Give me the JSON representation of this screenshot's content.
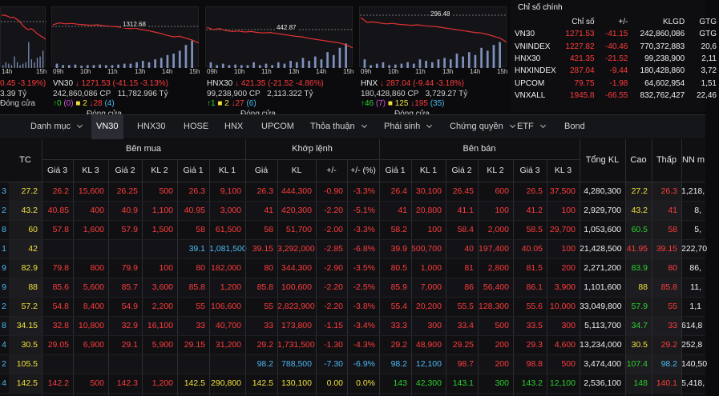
{
  "colors": {
    "up": "#2bd12b",
    "down": "#ff3b3b",
    "ceiling": "#d152d9",
    "floor": "#4ab8f0",
    "ref": "#f0e03a",
    "line": "#e23232",
    "volume": "#8fa7d9"
  },
  "cards": [
    {
      "id": "card0",
      "ref_label": "",
      "times": [
        "14h",
        "15h"
      ],
      "line": [
        0.1,
        0.1,
        0.12,
        0.15,
        0.14,
        0.18,
        0.22,
        0.3,
        0.36,
        0.4,
        0.38,
        0.42,
        0.48,
        0.52,
        0.56,
        0.6
      ],
      "vols": [
        0.1,
        0.2,
        0.15,
        0.1,
        0.4,
        0.2,
        0.1,
        0.15,
        0.2,
        0.9,
        0.3,
        0.2,
        0.35,
        0.4,
        0.6
      ],
      "l1": {
        "name": "",
        "arrow": "",
        "price": "",
        "change": "0.45 -3.19%)"
      },
      "l2": {
        "vol": "3.39",
        "value": "Tỷ"
      },
      "l3": {
        "up": "",
        "ceil": "",
        "ref": "",
        "down": "",
        "floor": ""
      },
      "status": "Đóng cửa"
    },
    {
      "id": "vn30",
      "ref_label": "1312.68",
      "times": [
        "09h",
        "10h",
        "11h",
        "13h",
        "14h",
        "15h"
      ],
      "line": [
        0.3,
        0.26,
        0.28,
        0.27,
        0.29,
        0.3,
        0.31,
        0.3,
        0.32,
        0.33,
        0.34,
        0.36,
        0.38,
        0.37,
        0.4,
        0.42,
        0.45,
        0.48,
        0.52,
        0.55,
        0.54,
        0.58,
        0.62,
        0.68
      ],
      "vols": [
        0.15,
        0.1,
        0.1,
        0.12,
        0.08,
        0.1,
        0.1,
        0.12,
        0.1,
        0.1,
        0.12,
        0.15,
        0.15,
        0.2,
        0.25,
        0.2,
        0.3,
        0.35,
        0.45,
        0.5,
        0.6,
        0.8,
        0.95
      ],
      "l1": {
        "name": "VN30",
        "arrow": "↓",
        "price": "1271.53",
        "change": "(-41.15 -3.13%)"
      },
      "l2": {
        "vol": "242,860,086 CP",
        "value": "11,782.996 Tỷ"
      },
      "l3": {
        "up": "0",
        "ceil": "(0)",
        "ref": "2",
        "down": "28",
        "floor": "(4)"
      },
      "status": "Đóng cửa"
    },
    {
      "id": "hnx30",
      "ref_label": "442.87",
      "times": [
        "09h",
        "10h",
        "11h",
        "13h",
        "14h",
        "15h"
      ],
      "line": [
        0.35,
        0.4,
        0.38,
        0.42,
        0.44,
        0.43,
        0.45,
        0.44,
        0.46,
        0.47,
        0.46,
        0.48,
        0.5,
        0.52,
        0.54,
        0.55,
        0.58,
        0.6,
        0.62,
        0.64,
        0.66,
        0.68,
        0.72,
        0.78
      ],
      "vols": [
        0.2,
        0.1,
        0.15,
        0.1,
        0.12,
        0.1,
        0.1,
        0.2,
        0.1,
        0.15,
        0.1,
        0.2,
        0.15,
        0.25,
        0.2,
        0.35,
        0.25,
        0.4,
        0.3,
        0.55,
        0.45,
        0.7,
        0.85
      ],
      "l1": {
        "name": "HNX30",
        "arrow": "↓",
        "price": "421.35",
        "change": "(-21.52 -4.86%)"
      },
      "l2": {
        "vol": "99,238,900 CP",
        "value": "2,113.322 Tỷ"
      },
      "l3": {
        "up": "1",
        "ceil": "",
        "ref": "2",
        "down": "27",
        "floor": "(6)"
      },
      "status": "Đóng cửa"
    },
    {
      "id": "hnx",
      "ref_label": "296.48",
      "times": [
        "09h",
        "10h",
        "11h",
        "13h",
        "14h",
        "15h"
      ],
      "line": [
        0.15,
        0.25,
        0.24,
        0.26,
        0.28,
        0.27,
        0.29,
        0.3,
        0.31,
        0.3,
        0.32,
        0.33,
        0.34,
        0.36,
        0.38,
        0.4,
        0.42,
        0.44,
        0.46,
        0.47,
        0.5,
        0.54,
        0.58,
        0.66
      ],
      "vols": [
        0.3,
        0.1,
        0.15,
        0.2,
        0.1,
        0.12,
        0.15,
        0.2,
        0.15,
        0.3,
        0.25,
        0.2,
        0.3,
        0.35,
        0.3,
        0.5,
        0.4,
        0.55,
        0.45,
        0.7,
        0.6,
        0.8,
        0.9
      ],
      "l1": {
        "name": "HNX",
        "arrow": "↓",
        "price": "287.04",
        "change": "(-9.44 -3.18%)"
      },
      "l2": {
        "vol": "180,428,860 CP",
        "value": "3,729.27 Tỷ"
      },
      "l3": {
        "up": "46",
        "ceil": "(7)",
        "ref": "125",
        "down": "195",
        "floor": "(35)"
      },
      "status": "Đóng cửa"
    }
  ],
  "summary": {
    "tab": "Chỉ số chính",
    "headers": [
      "Chỉ số",
      "+/-",
      "KLGD",
      "GTG"
    ],
    "rows": [
      [
        "VN30",
        "1271.53",
        "-41.15",
        "242,860,086",
        "GTG"
      ],
      [
        "VNINDEX",
        "1227.82",
        "-40.46",
        "770,372,883",
        "20,6"
      ],
      [
        "HNX30",
        "421.35",
        "-21.52",
        "99,238,900",
        "2,11"
      ],
      [
        "HNXINDEX",
        "287.04",
        "-9.44",
        "180,428,860",
        "3,72"
      ],
      [
        "UPCOM",
        "79.75",
        "-1.98",
        "64,602,954",
        "1,51"
      ],
      [
        "VNXALL",
        "1945.8",
        "-66.55",
        "832,762,427",
        "22,46"
      ]
    ]
  },
  "tabs": [
    "Danh mục",
    "VN30",
    "HNX30",
    "HOSE",
    "HNX",
    "UPCOM",
    "Thỏa thuận",
    "Phái sinh",
    "Chứng quyền",
    "ETF",
    "Bond"
  ],
  "board": {
    "groups": {
      "buy": "Bên mua",
      "match": "Khớp lệnh",
      "sell": "Bên bán"
    },
    "headers": [
      "TC",
      "Giá 3",
      "KL 3",
      "Giá 2",
      "KL 2",
      "Giá 1",
      "KL 1",
      "Giá",
      "KL",
      "+/-",
      "+/- (%)",
      "Giá 1",
      "KL 1",
      "Giá 2",
      "KL 2",
      "Giá 3",
      "KL 3",
      "Tổng KL",
      "Cao",
      "Thấp",
      "NN m"
    ],
    "rows": [
      {
        "sym": "3",
        "tc": "27.2",
        "b3": "26.2",
        "k3": "15,600",
        "b2": "26.25",
        "k2": "500",
        "b1": "26.3",
        "k1": "9,100",
        "p": "26.3",
        "v": "444,300",
        "ch": "-0.90",
        "pc": "-3.3%",
        "s1": "26.4",
        "sk1": "30,100",
        "s2": "26.45",
        "sk2": "600",
        "s3": "26.5",
        "sk3": "37,500",
        "tot": "4,280,300",
        "hi": "27.2",
        "lo": "26.3",
        "nn": "1,218,"
      },
      {
        "sym": "2",
        "tc": "43.2",
        "b3": "40.85",
        "k3": "400",
        "b2": "40.9",
        "k2": "1,100",
        "b1": "40.95",
        "k1": "3,000",
        "p": "41",
        "v": "420,300",
        "ch": "-2.20",
        "pc": "-5.1%",
        "s1": "41",
        "sk1": "20,800",
        "s2": "41.1",
        "sk2": "100",
        "s3": "41.2",
        "sk3": "100",
        "tot": "2,929,700",
        "hi": "43.2",
        "lo": "41",
        "nn": "8,"
      },
      {
        "sym": "8",
        "tc": "60",
        "b3": "57.8",
        "k3": "1,600",
        "b2": "57.9",
        "k2": "1,500",
        "b1": "58",
        "k1": "61,500",
        "p": "58",
        "v": "51,700",
        "ch": "-2.00",
        "pc": "-3.3%",
        "s1": "58.2",
        "sk1": "100",
        "s2": "58.4",
        "sk2": "2,000",
        "s3": "58.5",
        "sk3": "29,700",
        "tot": "1,053,600",
        "hi": "60.5",
        "lo": "58",
        "nn": "5,"
      },
      {
        "sym": "1",
        "tc": "42",
        "b3": "",
        "k3": "",
        "b2": "",
        "k2": "",
        "b1": "39.1",
        "k1": "1,081,500",
        "p": "39.15",
        "v": "3,292,000",
        "ch": "-2.85",
        "pc": "-6.8%",
        "s1": "39.9",
        "sk1": "500,700",
        "s2": "40",
        "sk2": "197,400",
        "s3": "40.05",
        "sk3": "100",
        "tot": "21,428,500",
        "hi": "41.95",
        "lo": "39.15",
        "nn": "222,70"
      },
      {
        "sym": "9",
        "tc": "82.9",
        "b3": "79.8",
        "k3": "800",
        "b2": "79.9",
        "k2": "100",
        "b1": "80",
        "k1": "182,000",
        "p": "80",
        "v": "344,300",
        "ch": "-2.90",
        "pc": "-3.5%",
        "s1": "80.5",
        "sk1": "1,000",
        "s2": "81",
        "sk2": "2,800",
        "s3": "81.5",
        "sk3": "200",
        "tot": "2,271,200",
        "hi": "83.9",
        "lo": "80",
        "nn": "86,"
      },
      {
        "sym": "9",
        "tc": "88",
        "b3": "85.6",
        "k3": "5,600",
        "b2": "85.7",
        "k2": "3,600",
        "b1": "85.8",
        "k1": "1,200",
        "p": "85.8",
        "v": "100,600",
        "ch": "-2.20",
        "pc": "-2.5%",
        "s1": "85.9",
        "sk1": "7,000",
        "s2": "86",
        "sk2": "56,400",
        "s3": "86.1",
        "sk3": "3,900",
        "tot": "1,101,600",
        "hi": "88",
        "lo": "85.8",
        "nn": "11,"
      },
      {
        "sym": "2",
        "tc": "57.2",
        "b3": "54.8",
        "k3": "8,400",
        "b2": "54.9",
        "k2": "2,200",
        "b1": "55",
        "k1": "106,600",
        "p": "55",
        "v": "2,823,900",
        "ch": "-2.20",
        "pc": "-3.8%",
        "s1": "55.4",
        "sk1": "20,200",
        "s2": "55.5",
        "sk2": "128,300",
        "s3": "55.6",
        "sk3": "10,000",
        "tot": "33,049,800",
        "hi": "57.9",
        "lo": "55",
        "nn": "1,1"
      },
      {
        "sym": "8",
        "tc": "34.15",
        "b3": "32.8",
        "k3": "10,800",
        "b2": "32.9",
        "k2": "16,100",
        "b1": "33",
        "k1": "40,700",
        "p": "33",
        "v": "173,800",
        "ch": "-1.15",
        "pc": "-3.4%",
        "s1": "33.3",
        "sk1": "300",
        "s2": "33.4",
        "sk2": "500",
        "s3": "33.5",
        "sk3": "300",
        "tot": "5,113,700",
        "hi": "34.7",
        "lo": "33",
        "nn": "614,8"
      },
      {
        "sym": "4",
        "tc": "30.5",
        "b3": "29.05",
        "k3": "6,900",
        "b2": "29.1",
        "k2": "5,900",
        "b1": "29.15",
        "k1": "31,200",
        "p": "29.2",
        "v": "1,731,500",
        "ch": "-1.30",
        "pc": "-4.3%",
        "s1": "29.2",
        "sk1": "48,900",
        "s2": "29.25",
        "sk2": "200",
        "s3": "29.3",
        "sk3": "4,600",
        "tot": "13,234,000",
        "hi": "30.5",
        "lo": "29.2",
        "nn": "252,8"
      },
      {
        "sym": "2",
        "tc": "105.5",
        "b3": "",
        "k3": "",
        "b2": "",
        "k2": "",
        "b1": "",
        "k1": "",
        "p": "98.2",
        "v": "788,500",
        "ch": "-7.30",
        "pc": "-6.9%",
        "s1": "98.2",
        "sk1": "12,100",
        "s2": "98.7",
        "sk2": "200",
        "s3": "98.8",
        "sk3": "500",
        "tot": "3,474,400",
        "hi": "107.4",
        "lo": "98.2",
        "nn": "140,50"
      },
      {
        "sym": "4",
        "tc": "142.5",
        "b3": "142.2",
        "k3": "500",
        "b2": "142.3",
        "k2": "1,200",
        "b1": "142.5",
        "k1": "290,800",
        "p": "142.5",
        "v": "130,100",
        "ch": "0.00",
        "pc": "0.0%",
        "s1": "143",
        "sk1": "42,300",
        "s2": "143.1",
        "sk2": "300",
        "s3": "143.2",
        "sk3": "12,100",
        "tot": "2,536,100",
        "hi": "148",
        "lo": "140.1",
        "nn": "5,418,"
      }
    ],
    "row_colors": [
      [
        "yel",
        "red",
        "red",
        "red",
        "red",
        "red",
        "red",
        "red",
        "red",
        "red",
        "red",
        "red",
        "red",
        "red",
        "red",
        "red",
        "red",
        "wht",
        "yel",
        "red",
        "wht"
      ],
      [
        "yel",
        "red",
        "red",
        "red",
        "red",
        "red",
        "red",
        "red",
        "red",
        "red",
        "red",
        "red",
        "red",
        "red",
        "red",
        "red",
        "red",
        "wht",
        "yel",
        "red",
        "wht"
      ],
      [
        "yel",
        "red",
        "red",
        "red",
        "red",
        "red",
        "red",
        "red",
        "red",
        "red",
        "red",
        "red",
        "red",
        "red",
        "red",
        "red",
        "red",
        "wht",
        "grn",
        "red",
        "wht"
      ],
      [
        "yel",
        "cyn",
        "cyn",
        "cyn",
        "cyn",
        "cyn",
        "cyn",
        "red",
        "red",
        "red",
        "red",
        "red",
        "red",
        "red",
        "red",
        "red",
        "red",
        "wht",
        "red",
        "red",
        "wht"
      ],
      [
        "yel",
        "red",
        "red",
        "red",
        "red",
        "red",
        "red",
        "red",
        "red",
        "red",
        "red",
        "red",
        "red",
        "red",
        "red",
        "red",
        "red",
        "wht",
        "grn",
        "red",
        "wht"
      ],
      [
        "yel",
        "red",
        "red",
        "red",
        "red",
        "red",
        "red",
        "red",
        "red",
        "red",
        "red",
        "red",
        "red",
        "red",
        "red",
        "red",
        "red",
        "wht",
        "yel",
        "red",
        "wht"
      ],
      [
        "yel",
        "red",
        "red",
        "red",
        "red",
        "red",
        "red",
        "red",
        "red",
        "red",
        "red",
        "red",
        "red",
        "red",
        "red",
        "red",
        "red",
        "wht",
        "grn",
        "red",
        "wht"
      ],
      [
        "yel",
        "red",
        "red",
        "red",
        "red",
        "red",
        "red",
        "red",
        "red",
        "red",
        "red",
        "red",
        "red",
        "red",
        "red",
        "red",
        "red",
        "wht",
        "grn",
        "red",
        "wht"
      ],
      [
        "yel",
        "red",
        "red",
        "red",
        "red",
        "red",
        "red",
        "red",
        "red",
        "red",
        "red",
        "red",
        "red",
        "red",
        "red",
        "red",
        "red",
        "wht",
        "yel",
        "red",
        "wht"
      ],
      [
        "yel",
        "cyn",
        "cyn",
        "cyn",
        "cyn",
        "cyn",
        "cyn",
        "cyn",
        "cyn",
        "cyn",
        "cyn",
        "cyn",
        "cyn",
        "red",
        "red",
        "red",
        "red",
        "wht",
        "grn",
        "cyn",
        "wht"
      ],
      [
        "yel",
        "red",
        "red",
        "red",
        "red",
        "yel",
        "yel",
        "yel",
        "yel",
        "yel",
        "yel",
        "grn",
        "grn",
        "grn",
        "grn",
        "grn",
        "grn",
        "wht",
        "grn",
        "red",
        "wht"
      ]
    ]
  }
}
